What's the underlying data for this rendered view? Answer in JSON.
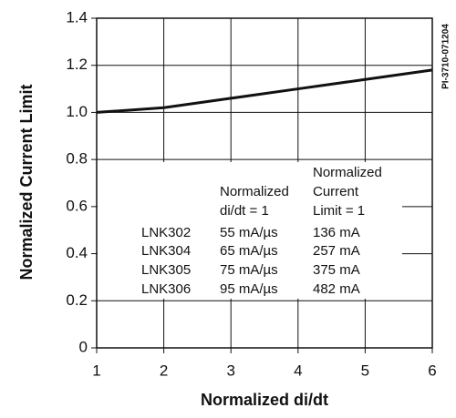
{
  "chart_data": {
    "type": "line",
    "x_label": "Normalized di/dt",
    "y_label": "Normalized Current Limit",
    "figure_id": "PI-3710-071204",
    "x": [
      1,
      2,
      3,
      4,
      5,
      6
    ],
    "values": [
      1.0,
      1.02,
      1.06,
      1.1,
      1.14,
      1.18
    ],
    "color": "#111111",
    "xlim": [
      1,
      6
    ],
    "ylim": [
      0,
      1.4
    ],
    "xticks": [
      1,
      2,
      3,
      4,
      5,
      6
    ],
    "yticks": [
      0,
      0.2,
      0.4,
      0.6,
      0.8,
      {
        "value": 1,
        "label": "1.0"
      },
      1.2,
      1.4
    ],
    "grid": true,
    "table": {
      "headers": [
        [
          "Normalized",
          "di/dt = 1"
        ],
        [
          "Normalized",
          "Current",
          "Limit = 1"
        ]
      ],
      "rows": [
        [
          "LNK302",
          "55 mA/µs",
          "136 mA"
        ],
        [
          "LNK304",
          "65 mA/µs",
          "257 mA"
        ],
        [
          "LNK305",
          "75 mA/µs",
          "375 mA"
        ],
        [
          "LNK306",
          "95 mA/µs",
          "482 mA"
        ]
      ]
    }
  }
}
